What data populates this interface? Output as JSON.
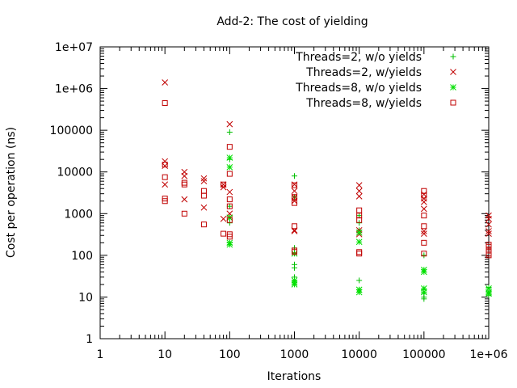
{
  "chart_data": {
    "type": "scatter",
    "title": "Add-2: The cost of yielding",
    "xlabel": "Iterations",
    "ylabel": "Cost per operation (ns)",
    "xscale": "log",
    "yscale": "log",
    "xlim": [
      1,
      1000000
    ],
    "ylim": [
      1,
      10000000
    ],
    "xticks": [
      1,
      10,
      100,
      1000,
      10000,
      100000,
      1000000
    ],
    "xtick_labels": [
      "1",
      "10",
      "100",
      "1000",
      "10000",
      "100000",
      "1e+06"
    ],
    "yticks": [
      1,
      10,
      100,
      1000,
      10000,
      100000,
      1000000,
      10000000
    ],
    "ytick_labels": [
      "1",
      "10",
      "100",
      "1000",
      "10000",
      "100000",
      "1e+06",
      "1e+07"
    ],
    "grid": false,
    "legend_position": "top-right",
    "series": [
      {
        "name": "Threads=2, w/o yields",
        "marker": "plus",
        "color": "#00c000",
        "points": [
          [
            100,
            90000
          ],
          [
            100,
            20000
          ],
          [
            100,
            1500
          ],
          [
            100,
            800
          ],
          [
            100,
            600
          ],
          [
            100,
            200
          ],
          [
            1000,
            8000
          ],
          [
            1000,
            2500
          ],
          [
            1000,
            150
          ],
          [
            1000,
            60
          ],
          [
            1000,
            50
          ],
          [
            1000,
            30
          ],
          [
            1000,
            25
          ],
          [
            10000,
            900
          ],
          [
            10000,
            600
          ],
          [
            10000,
            400
          ],
          [
            10000,
            25
          ],
          [
            10000,
            15
          ],
          [
            100000,
            100
          ],
          [
            100000,
            15
          ],
          [
            100000,
            12
          ],
          [
            100000,
            10
          ],
          [
            100000,
            9
          ],
          [
            1000000,
            17
          ],
          [
            1000000,
            14
          ],
          [
            1000000,
            12
          ],
          [
            1000000,
            11
          ]
        ]
      },
      {
        "name": "Threads=2, w/yields",
        "marker": "cross",
        "color": "#c00000",
        "points": [
          [
            10,
            1400000
          ],
          [
            10,
            18000
          ],
          [
            10,
            14000
          ],
          [
            10,
            5000
          ],
          [
            20,
            10000
          ],
          [
            20,
            8000
          ],
          [
            20,
            2200
          ],
          [
            40,
            7000
          ],
          [
            40,
            6000
          ],
          [
            40,
            1400
          ],
          [
            80,
            5000
          ],
          [
            80,
            4300
          ],
          [
            80,
            750
          ],
          [
            100,
            140000
          ],
          [
            100,
            3300
          ],
          [
            100,
            1000
          ],
          [
            100,
            800
          ],
          [
            1000,
            5000
          ],
          [
            1000,
            3500
          ],
          [
            1000,
            2500
          ],
          [
            1000,
            2000
          ],
          [
            1000,
            400
          ],
          [
            1000,
            380
          ],
          [
            10000,
            4800
          ],
          [
            10000,
            3500
          ],
          [
            10000,
            2600
          ],
          [
            10000,
            400
          ],
          [
            10000,
            350
          ],
          [
            10000,
            320
          ],
          [
            100000,
            2900
          ],
          [
            100000,
            2300
          ],
          [
            100000,
            1900
          ],
          [
            100000,
            1300
          ],
          [
            100000,
            380
          ],
          [
            100000,
            330
          ],
          [
            1000000,
            900
          ],
          [
            1000000,
            750
          ],
          [
            1000000,
            550
          ],
          [
            1000000,
            380
          ],
          [
            1000000,
            330
          ]
        ]
      },
      {
        "name": "Threads=8, w/o yields",
        "marker": "star",
        "color": "#00e000",
        "points": [
          [
            100,
            22000
          ],
          [
            100,
            13000
          ],
          [
            100,
            800
          ],
          [
            100,
            200
          ],
          [
            100,
            180
          ],
          [
            1000,
            110
          ],
          [
            1000,
            25
          ],
          [
            1000,
            22
          ],
          [
            1000,
            20
          ],
          [
            10000,
            350
          ],
          [
            10000,
            210
          ],
          [
            10000,
            15
          ],
          [
            10000,
            13
          ],
          [
            100000,
            45
          ],
          [
            100000,
            40
          ],
          [
            100000,
            16
          ],
          [
            100000,
            13
          ],
          [
            1000000,
            16
          ],
          [
            1000000,
            13
          ],
          [
            1000000,
            12
          ]
        ]
      },
      {
        "name": "Threads=8, w/yields",
        "marker": "square",
        "color": "#c00000",
        "points": [
          [
            10,
            450000
          ],
          [
            10,
            15000
          ],
          [
            10,
            7500
          ],
          [
            10,
            2300
          ],
          [
            10,
            2000
          ],
          [
            20,
            5500
          ],
          [
            20,
            5000
          ],
          [
            20,
            1000
          ],
          [
            40,
            3500
          ],
          [
            40,
            2700
          ],
          [
            40,
            550
          ],
          [
            80,
            5000
          ],
          [
            80,
            330
          ],
          [
            100,
            40000
          ],
          [
            100,
            9000
          ],
          [
            100,
            2200
          ],
          [
            100,
            1500
          ],
          [
            100,
            700
          ],
          [
            100,
            320
          ],
          [
            100,
            280
          ],
          [
            1000,
            4800
          ],
          [
            1000,
            2500
          ],
          [
            1000,
            1800
          ],
          [
            1000,
            500
          ],
          [
            1000,
            130
          ],
          [
            1000,
            120
          ],
          [
            10000,
            1200
          ],
          [
            10000,
            900
          ],
          [
            10000,
            700
          ],
          [
            10000,
            120
          ],
          [
            10000,
            110
          ],
          [
            100000,
            3500
          ],
          [
            100000,
            2700
          ],
          [
            100000,
            900
          ],
          [
            100000,
            500
          ],
          [
            100000,
            200
          ],
          [
            100000,
            110
          ],
          [
            1000000,
            180
          ],
          [
            1000000,
            160
          ],
          [
            1000000,
            130
          ],
          [
            1000000,
            110
          ],
          [
            1000000,
            100
          ]
        ]
      }
    ]
  }
}
